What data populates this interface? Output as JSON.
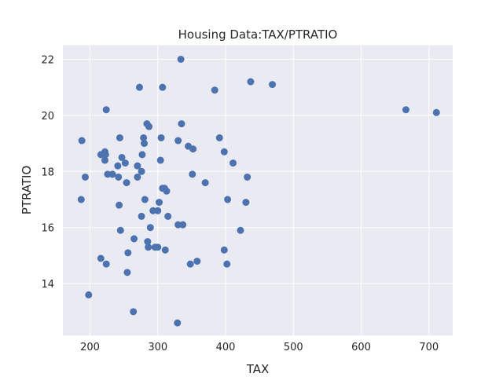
{
  "chart_data": {
    "type": "scatter",
    "title": "Housing Data:TAX/PTRATIO",
    "xlabel": "TAX",
    "ylabel": "PTRATIO",
    "xlim": [
      160,
      735
    ],
    "ylim": [
      12.15,
      22.5
    ],
    "xticks": [
      "200",
      "300",
      "400",
      "500",
      "600",
      "700"
    ],
    "yticks": [
      "14",
      "16",
      "18",
      "20",
      "22"
    ],
    "grid": true,
    "background": "#EAEAF2",
    "point_color": "#4C72B0",
    "points": [
      [
        187,
        17.0
      ],
      [
        188,
        19.1
      ],
      [
        193,
        17.8
      ],
      [
        198,
        13.6
      ],
      [
        216,
        18.6
      ],
      [
        216,
        14.9
      ],
      [
        222,
        18.7
      ],
      [
        222,
        18.4
      ],
      [
        223,
        18.6
      ],
      [
        224,
        20.2
      ],
      [
        224,
        14.7
      ],
      [
        226,
        17.9
      ],
      [
        233,
        17.9
      ],
      [
        233,
        17.9
      ],
      [
        241,
        18.2
      ],
      [
        242,
        17.8
      ],
      [
        243,
        16.8
      ],
      [
        244,
        19.2
      ],
      [
        245,
        15.9
      ],
      [
        247,
        18.5
      ],
      [
        252,
        18.3
      ],
      [
        254,
        17.6
      ],
      [
        255,
        14.4
      ],
      [
        256,
        15.1
      ],
      [
        264,
        13.0
      ],
      [
        265,
        15.6
      ],
      [
        270,
        18.2
      ],
      [
        270,
        17.8
      ],
      [
        273,
        21.0
      ],
      [
        276,
        18.0
      ],
      [
        276,
        16.4
      ],
      [
        277,
        18.6
      ],
      [
        279,
        19.2
      ],
      [
        280,
        19.0
      ],
      [
        281,
        17.0
      ],
      [
        284,
        19.7
      ],
      [
        285,
        15.5
      ],
      [
        286,
        15.3
      ],
      [
        287,
        19.6
      ],
      [
        289,
        16.0
      ],
      [
        293,
        16.6
      ],
      [
        296,
        15.3
      ],
      [
        300,
        16.6
      ],
      [
        300,
        15.3
      ],
      [
        302,
        16.9
      ],
      [
        304,
        18.4
      ],
      [
        305,
        19.2
      ],
      [
        307,
        21.0
      ],
      [
        307,
        17.4
      ],
      [
        310,
        17.4
      ],
      [
        311,
        15.2
      ],
      [
        313,
        17.3
      ],
      [
        315,
        16.4
      ],
      [
        329,
        12.6
      ],
      [
        330,
        16.1
      ],
      [
        330,
        19.1
      ],
      [
        334,
        22.0
      ],
      [
        335,
        19.7
      ],
      [
        337,
        16.1
      ],
      [
        345,
        18.9
      ],
      [
        348,
        14.7
      ],
      [
        351,
        17.9
      ],
      [
        352,
        18.8
      ],
      [
        358,
        14.8
      ],
      [
        370,
        17.6
      ],
      [
        384,
        20.9
      ],
      [
        391,
        19.2
      ],
      [
        398,
        18.7
      ],
      [
        398,
        15.2
      ],
      [
        402,
        14.7
      ],
      [
        403,
        17.0
      ],
      [
        411,
        18.3
      ],
      [
        422,
        15.9
      ],
      [
        430,
        16.9
      ],
      [
        432,
        17.8
      ],
      [
        437,
        21.2
      ],
      [
        469,
        21.1
      ],
      [
        666,
        20.2
      ],
      [
        711,
        20.1
      ]
    ]
  }
}
